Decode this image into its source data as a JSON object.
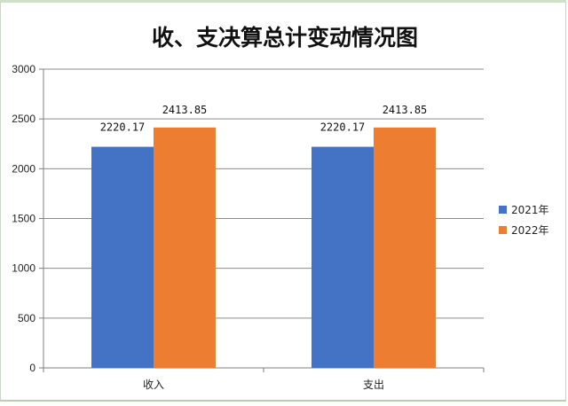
{
  "chart_data": {
    "type": "bar",
    "title": "收、支决算总计变动情况图",
    "xlabel": "",
    "ylabel": "",
    "categories": [
      "收入",
      "支出"
    ],
    "series": [
      {
        "name": "2021年",
        "values": [
          2220.17,
          2220.17
        ],
        "labels": [
          "2220.17",
          "2220.17"
        ],
        "color": "#4472c4"
      },
      {
        "name": "2022年",
        "values": [
          2413.85,
          2413.85
        ],
        "labels": [
          "2413.85",
          "2413.85"
        ],
        "color": "#ed7d31"
      }
    ],
    "ylim": [
      0,
      3000
    ],
    "yticks": [
      "0",
      "500",
      "1000",
      "1500",
      "2000",
      "2500",
      "3000"
    ],
    "grid": true,
    "legend_position": "right"
  }
}
